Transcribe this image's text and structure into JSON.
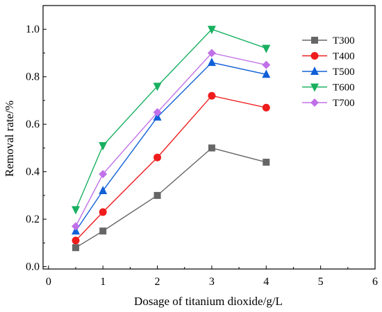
{
  "chart_data": {
    "type": "line",
    "xlabel": "Dosage of titanium dioxide/g/L",
    "ylabel": "Removal rate/%",
    "xlim": [
      -0.1,
      6
    ],
    "ylim": [
      -0.01,
      1.1
    ],
    "x_ticks": [
      "0",
      "1",
      "2",
      "3",
      "4",
      "5",
      "6"
    ],
    "y_ticks": [
      "0.0",
      "0.2",
      "0.4",
      "0.6",
      "0.8",
      "1.0"
    ],
    "x_tick_values": [
      0,
      1,
      2,
      3,
      4,
      5,
      6
    ],
    "y_tick_values": [
      0,
      0.2,
      0.4,
      0.6,
      0.8,
      1.0
    ],
    "x": [
      0.5,
      1,
      2,
      3,
      4
    ],
    "grid": false,
    "legend_position": "top-right",
    "series": [
      {
        "name": "T300",
        "color": "#666666",
        "marker": "square",
        "values": [
          0.08,
          0.15,
          0.3,
          0.5,
          0.44
        ]
      },
      {
        "name": "T400",
        "color": "#ee1c1c",
        "marker": "circle",
        "values": [
          0.11,
          0.23,
          0.46,
          0.72,
          0.67
        ]
      },
      {
        "name": "T500",
        "color": "#1060d8",
        "marker": "triangle-up",
        "values": [
          0.15,
          0.32,
          0.63,
          0.86,
          0.81
        ]
      },
      {
        "name": "T600",
        "color": "#18b060",
        "marker": "triangle-down",
        "values": [
          0.24,
          0.51,
          0.76,
          1.0,
          0.92
        ]
      },
      {
        "name": "T700",
        "color": "#c070e8",
        "marker": "diamond",
        "values": [
          0.17,
          0.39,
          0.65,
          0.9,
          0.85
        ]
      }
    ]
  }
}
